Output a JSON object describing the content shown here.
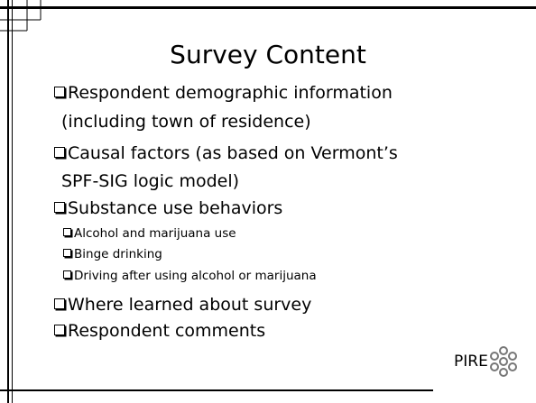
{
  "slide": {
    "title": "Survey Content",
    "bullets": [
      {
        "lines": [
          "Respondent demographic information",
          "(including town of residence)"
        ]
      },
      {
        "lines": [
          "Causal factors (as based on Vermont’s",
          "SPF-SIG logic model)"
        ]
      },
      {
        "lines": [
          "Substance use behaviors"
        ],
        "sub": [
          "Alcohol and marijuana use",
          "Binge drinking",
          "Driving after using alcohol or marijuana"
        ]
      },
      {
        "lines": [
          "Where learned about survey"
        ]
      },
      {
        "lines": [
          "Respondent comments"
        ]
      }
    ],
    "logo": "PIRE"
  }
}
